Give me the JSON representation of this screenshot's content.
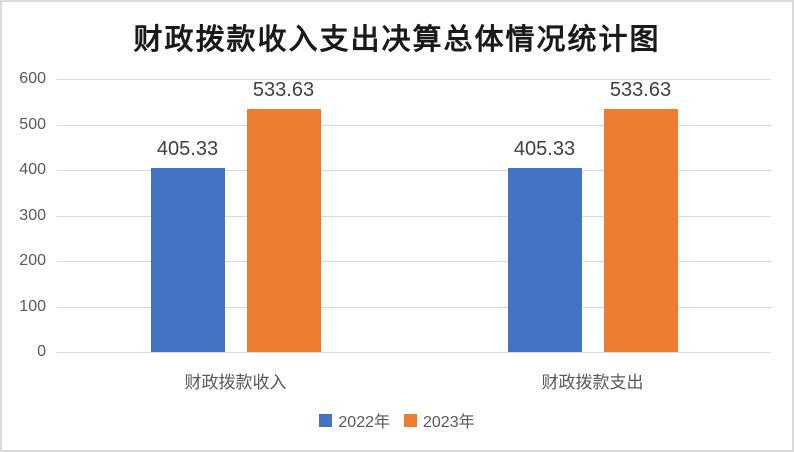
{
  "title": "财政拨款收入支出决算总体情况统计图",
  "chart_data": {
    "type": "bar",
    "title": "财政拨款收入支出决算总体情况统计图",
    "categories": [
      "财政拨款收入",
      "财政拨款支出"
    ],
    "series": [
      {
        "name": "2022年",
        "color": "#4472C4",
        "values": [
          405.33,
          405.33
        ]
      },
      {
        "name": "2023年",
        "color": "#ED7D31",
        "values": [
          533.63,
          533.63
        ]
      }
    ],
    "data_labels": [
      "405.33",
      "533.63",
      "405.33",
      "533.63"
    ],
    "ylim": [
      0,
      600
    ],
    "ytick_step": 100,
    "yticks": [
      "600",
      "500",
      "400",
      "300",
      "200",
      "100",
      "0"
    ],
    "xlabel": "",
    "ylabel": "",
    "grid": true,
    "legend_position": "bottom",
    "colors": {
      "series_2022": "#4472C4",
      "series_2023": "#ED7D31",
      "gridline": "#d9d9d9",
      "axis_text": "#595959",
      "data_label_text": "#404040",
      "title_text": "#1a1a1a",
      "frame_border": "#d9d9d9",
      "background": "#ffffff"
    }
  }
}
